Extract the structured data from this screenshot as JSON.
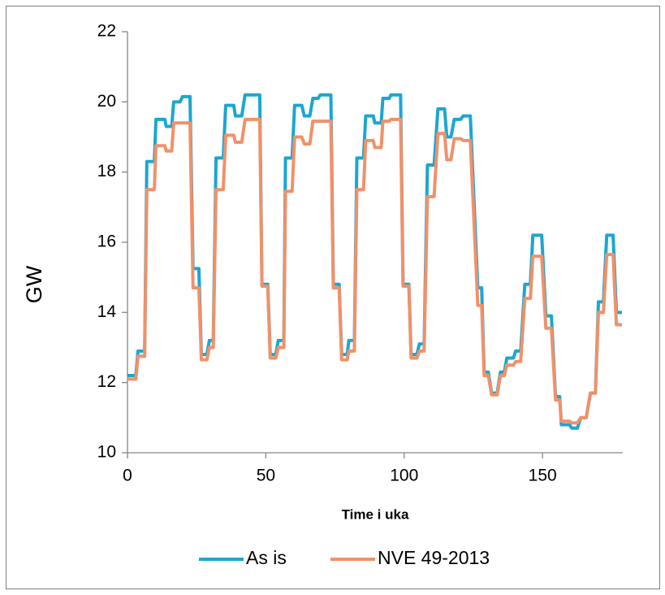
{
  "chart_data": {
    "type": "line",
    "x_label": "Time i uka",
    "y_label": "GW",
    "xlim": [
      0,
      179
    ],
    "xticks": [
      0,
      50,
      100,
      150
    ],
    "ylim": [
      10,
      22
    ],
    "yticks": [
      10,
      12,
      14,
      16,
      18,
      20,
      22
    ],
    "legend": "bottom",
    "x": [
      0,
      3,
      3.8,
      6.2,
      7,
      9.7,
      10.3,
      13.5,
      14,
      16,
      16.7,
      19,
      19.9,
      22.6,
      23.7,
      25.8,
      26.7,
      28.7,
      29.6,
      31,
      32,
      34.6,
      35.5,
      38.4,
      39,
      41.3,
      42.5,
      47.8,
      48.6,
      50.7,
      51.6,
      53.6,
      54.5,
      56.5,
      57.1,
      59.5,
      60.4,
      63,
      63.9,
      65.9,
      67,
      68.9,
      69.7,
      73.5,
      74.4,
      76.5,
      77.4,
      79.4,
      80,
      82,
      82.9,
      85.3,
      86.1,
      88.8,
      89.4,
      91.7,
      92.3,
      94.6,
      95.2,
      98.7,
      99.6,
      101.7,
      102.5,
      104.6,
      105.5,
      107.2,
      108.4,
      110.8,
      112.2,
      114.6,
      115.4,
      116.9,
      118.1,
      120.4,
      121.3,
      123.9,
      126.6,
      128,
      128.9,
      130.4,
      131.6,
      133.6,
      134.8,
      136.2,
      137.1,
      139.5,
      140.3,
      142.1,
      143.6,
      145.6,
      146.5,
      149.7,
      151.2,
      153.2,
      154.7,
      156.2,
      156.8,
      159.7,
      160.6,
      162.6,
      163.8,
      165.8,
      167.3,
      169.1,
      170.2,
      172,
      173.2,
      175.5,
      176.7,
      178.7
    ],
    "series": [
      {
        "name": "As is",
        "color": "#1ba7cf",
        "values": [
          12.2,
          12.2,
          12.9,
          12.9,
          18.3,
          18.3,
          19.5,
          19.5,
          19.3,
          19.3,
          20.0,
          20.0,
          20.15,
          20.15,
          15.25,
          15.25,
          12.8,
          12.8,
          13.2,
          13.2,
          18.4,
          18.4,
          19.9,
          19.9,
          19.6,
          19.6,
          20.2,
          20.2,
          14.8,
          14.8,
          12.8,
          12.8,
          13.2,
          13.2,
          18.4,
          18.4,
          19.9,
          19.9,
          19.6,
          19.6,
          20.1,
          20.1,
          20.2,
          20.2,
          14.8,
          14.8,
          12.8,
          12.8,
          13.2,
          13.2,
          18.4,
          18.4,
          19.6,
          19.6,
          19.4,
          19.4,
          20.1,
          20.1,
          20.2,
          20.2,
          14.8,
          14.8,
          12.8,
          12.8,
          13.1,
          13.1,
          18.2,
          18.2,
          19.8,
          19.8,
          19.0,
          19.0,
          19.5,
          19.5,
          19.6,
          19.6,
          14.7,
          14.7,
          12.3,
          12.3,
          11.7,
          11.7,
          12.3,
          12.3,
          12.7,
          12.7,
          12.9,
          12.9,
          14.8,
          14.8,
          16.2,
          16.2,
          13.9,
          13.9,
          11.6,
          11.6,
          10.8,
          10.8,
          10.7,
          10.7,
          11.0,
          11.0,
          11.7,
          11.7,
          14.3,
          14.3,
          16.2,
          16.2,
          14.0,
          14.0
        ]
      },
      {
        "name": "NVE 49-2013",
        "color": "#f0916a",
        "values": [
          12.1,
          12.1,
          12.75,
          12.75,
          17.5,
          17.5,
          18.75,
          18.75,
          18.6,
          18.6,
          19.4,
          19.4,
          19.4,
          19.4,
          14.7,
          14.7,
          12.65,
          12.65,
          13.0,
          13.0,
          17.5,
          17.5,
          19.05,
          19.05,
          18.85,
          18.85,
          19.5,
          19.5,
          14.75,
          14.75,
          12.7,
          12.7,
          13.0,
          13.0,
          17.45,
          17.45,
          19.0,
          19.0,
          18.8,
          18.8,
          19.45,
          19.45,
          19.45,
          19.45,
          14.7,
          14.7,
          12.65,
          12.65,
          12.9,
          12.9,
          17.5,
          17.5,
          18.9,
          18.9,
          18.7,
          18.7,
          19.45,
          19.45,
          19.5,
          19.5,
          14.75,
          14.75,
          12.7,
          12.7,
          12.9,
          12.9,
          17.3,
          17.3,
          19.1,
          19.1,
          18.35,
          18.35,
          18.95,
          18.95,
          18.9,
          18.9,
          14.2,
          14.2,
          12.2,
          12.2,
          11.65,
          11.65,
          12.2,
          12.2,
          12.5,
          12.5,
          12.6,
          12.6,
          14.4,
          14.4,
          15.6,
          15.6,
          13.55,
          13.55,
          11.5,
          11.5,
          10.9,
          10.9,
          10.85,
          10.85,
          11.0,
          11.0,
          11.7,
          11.7,
          14.0,
          14.0,
          15.65,
          15.65,
          13.65,
          13.65
        ]
      }
    ]
  }
}
